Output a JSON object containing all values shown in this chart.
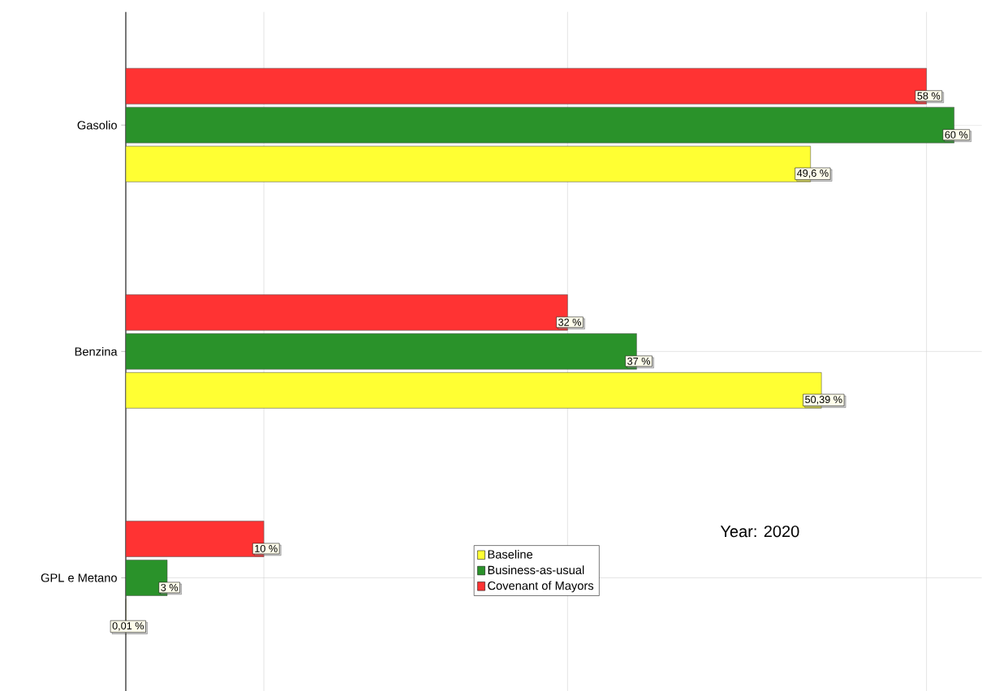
{
  "chart_data": {
    "type": "bar",
    "orientation": "horizontal",
    "categories": [
      "Gasolio",
      "Benzina",
      "GPL e Metano"
    ],
    "series": [
      {
        "name": "Baseline",
        "color": "#ffff33",
        "values": [
          49.6,
          50.39,
          0.01
        ],
        "value_labels": [
          "49,6 %",
          "50,39 %",
          "0,01 %"
        ]
      },
      {
        "name": "Business-as-usual",
        "color": "#2a922a",
        "values": [
          60,
          37,
          3
        ],
        "value_labels": [
          "60 %",
          "37 %",
          "3 %"
        ]
      },
      {
        "name": "Covenant of Mayors",
        "color": "#ff3333",
        "values": [
          58,
          32,
          10
        ],
        "value_labels": [
          "58 %",
          "32 %",
          "10 %"
        ]
      }
    ],
    "xlim": [
      0,
      62
    ],
    "xticks": [
      {
        "value": 10,
        "label": null
      },
      {
        "value": 32,
        "label": null
      },
      {
        "value": 58,
        "label": null
      }
    ],
    "tick_labels": "y",
    "grid": true,
    "legend": "bottom",
    "annotations": [
      "Year: 2020"
    ]
  }
}
